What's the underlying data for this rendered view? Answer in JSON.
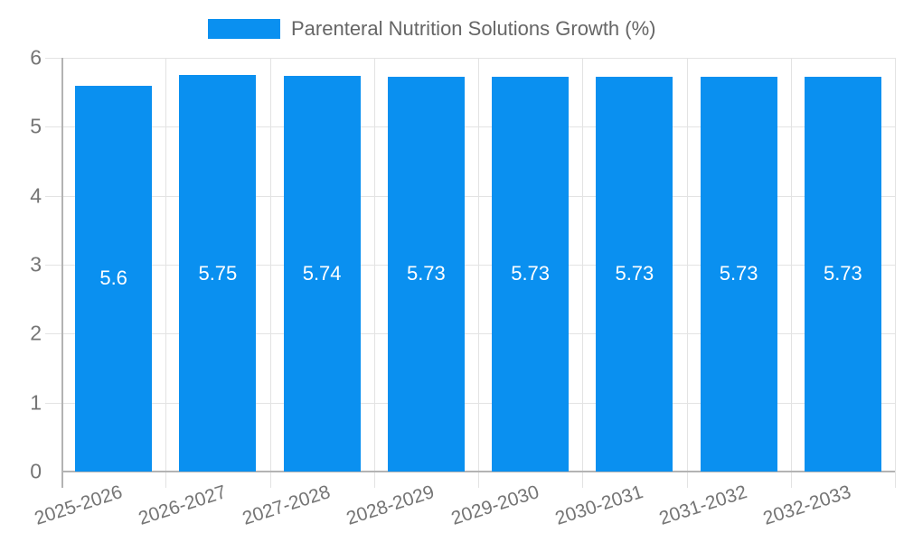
{
  "legend": {
    "label": "Parenteral Nutrition Solutions Growth (%)"
  },
  "colors": {
    "bar": "#0a90f0",
    "grid": "#e3e3e3",
    "axis": "#b3b3b3",
    "tick_text": "#757575",
    "legend_text": "#666666",
    "value_text": "#ffffff"
  },
  "chart_data": {
    "type": "bar",
    "title": "Parenteral Nutrition Solutions Growth (%)",
    "categories": [
      "2025-2026",
      "2026-2027",
      "2027-2028",
      "2028-2029",
      "2029-2030",
      "2030-2031",
      "2031-2032",
      "2032-2033"
    ],
    "values": [
      5.6,
      5.75,
      5.74,
      5.73,
      5.73,
      5.73,
      5.73,
      5.73
    ],
    "value_labels": [
      "5.6",
      "5.75",
      "5.74",
      "5.73",
      "5.73",
      "5.73",
      "5.73",
      "5.73"
    ],
    "series_name": "Parenteral Nutrition Solutions Growth (%)",
    "xlabel": "",
    "ylabel": "",
    "y_ticks": [
      0,
      1,
      2,
      3,
      4,
      5,
      6
    ],
    "ylim": [
      0,
      6
    ],
    "grid": true,
    "legend_position": "top",
    "bar_label_position": "center"
  }
}
